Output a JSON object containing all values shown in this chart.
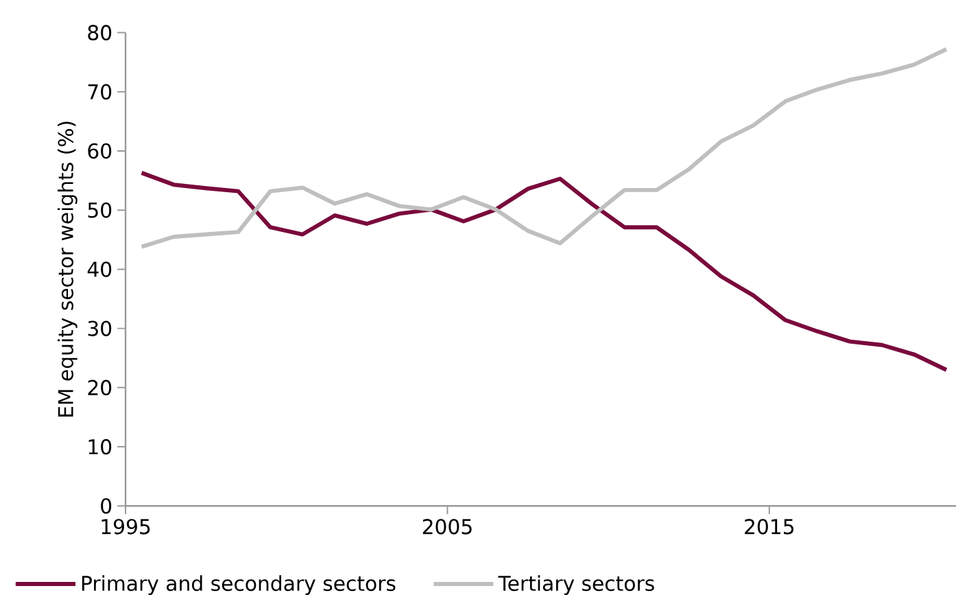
{
  "chart_data": {
    "type": "line",
    "ylabel": "EM equity sector weights (%)",
    "xlim": [
      1995,
      2020.8
    ],
    "xticks": [
      1995,
      2005,
      2015
    ],
    "ylim": [
      0,
      80
    ],
    "yticks": [
      0,
      10,
      20,
      30,
      40,
      50,
      60,
      70,
      80
    ],
    "x": [
      1995.5,
      1996.5,
      1997.5,
      1998.5,
      1999.5,
      2000.5,
      2001.5,
      2002.5,
      2003.5,
      2004.5,
      2005.5,
      2006.5,
      2007.5,
      2008.5,
      2009.5,
      2010.5,
      2011.5,
      2012.5,
      2013.5,
      2014.5,
      2015.5,
      2016.5,
      2017.5,
      2018.5,
      2019.5,
      2020.5
    ],
    "series": [
      {
        "name": "Primary and secondary sectors",
        "color": "#7a0a3c",
        "values": [
          56.3,
          54.3,
          53.7,
          53.2,
          47.1,
          45.9,
          49.1,
          47.7,
          49.4,
          50.1,
          48.1,
          50.1,
          53.6,
          55.3,
          51.0,
          47.1,
          47.1,
          43.3,
          38.8,
          35.6,
          31.4,
          29.5,
          27.8,
          27.2,
          25.6,
          23.0
        ]
      },
      {
        "name": "Tertiary sectors",
        "color": "#bfbfbf",
        "values": [
          43.8,
          45.5,
          45.9,
          46.3,
          53.2,
          53.8,
          51.1,
          52.7,
          50.7,
          50.1,
          52.2,
          50.1,
          46.5,
          44.4,
          49.0,
          53.4,
          53.4,
          56.9,
          61.6,
          64.3,
          68.4,
          70.4,
          72.0,
          73.1,
          74.6,
          77.2
        ]
      }
    ],
    "grid": false,
    "legend": "bottom",
    "marker": "none",
    "line_style": "solid"
  }
}
